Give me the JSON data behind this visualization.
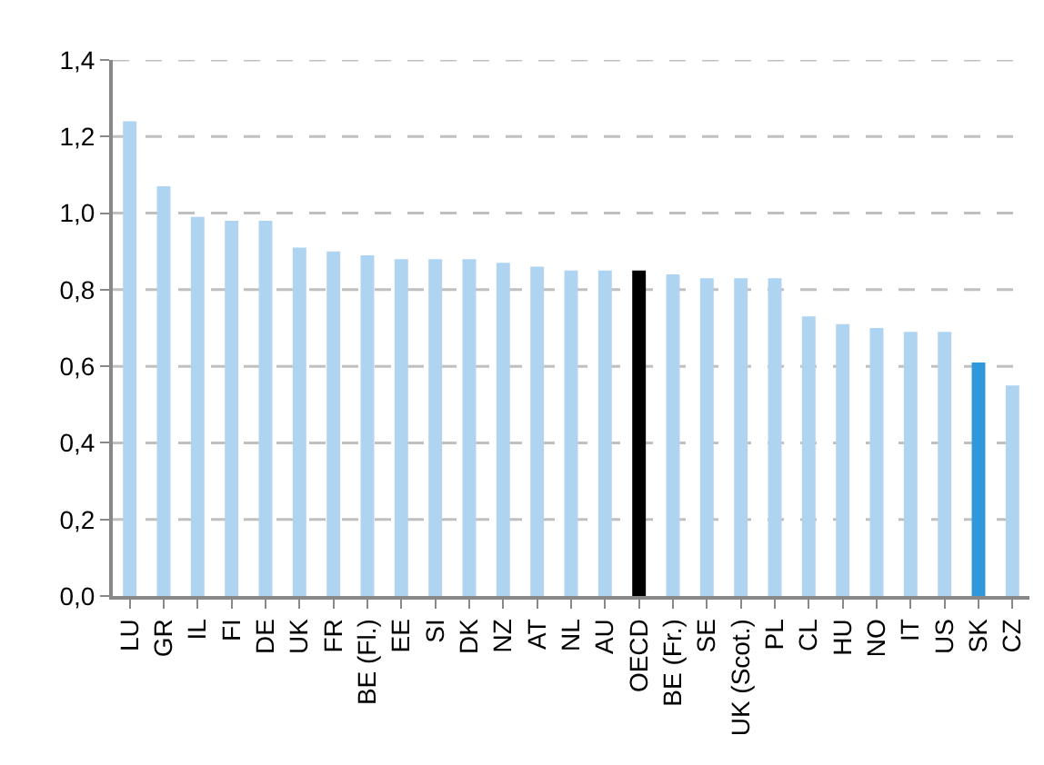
{
  "chart_data": {
    "type": "bar",
    "categories": [
      "LU",
      "GR",
      "IL",
      "FI",
      "DE",
      "UK",
      "FR",
      "BE (Fl.)",
      "EE",
      "SI",
      "DK",
      "NZ",
      "AT",
      "NL",
      "AU",
      "OECD",
      "BE (Fr.)",
      "SE",
      "UK (Scot.)",
      "PL",
      "CL",
      "HU",
      "NO",
      "IT",
      "US",
      "SK",
      "CZ"
    ],
    "values": [
      1.24,
      1.07,
      0.99,
      0.98,
      0.98,
      0.91,
      0.9,
      0.89,
      0.88,
      0.88,
      0.88,
      0.87,
      0.86,
      0.85,
      0.85,
      0.85,
      0.84,
      0.83,
      0.83,
      0.83,
      0.73,
      0.71,
      0.7,
      0.69,
      0.69,
      0.61,
      0.55
    ],
    "colors": [
      "#aed4f2",
      "#aed4f2",
      "#aed4f2",
      "#aed4f2",
      "#aed4f2",
      "#aed4f2",
      "#aed4f2",
      "#aed4f2",
      "#aed4f2",
      "#aed4f2",
      "#aed4f2",
      "#aed4f2",
      "#aed4f2",
      "#aed4f2",
      "#aed4f2",
      "#000000",
      "#aed4f2",
      "#aed4f2",
      "#aed4f2",
      "#aed4f2",
      "#aed4f2",
      "#aed4f2",
      "#aed4f2",
      "#aed4f2",
      "#aed4f2",
      "#2f97db",
      "#aed4f2"
    ],
    "ylim": [
      0,
      1.4
    ],
    "yticks": [
      {
        "value": 0,
        "label": "0,0"
      },
      {
        "value": 0.2,
        "label": "0,2"
      },
      {
        "value": 0.4,
        "label": "0,4"
      },
      {
        "value": 0.6,
        "label": "0,6"
      },
      {
        "value": 0.8,
        "label": "0,8"
      },
      {
        "value": 1.0,
        "label": "1,0"
      },
      {
        "value": 1.2,
        "label": "1,2"
      },
      {
        "value": 1.4,
        "label": "1,4"
      }
    ],
    "grid": "y"
  }
}
